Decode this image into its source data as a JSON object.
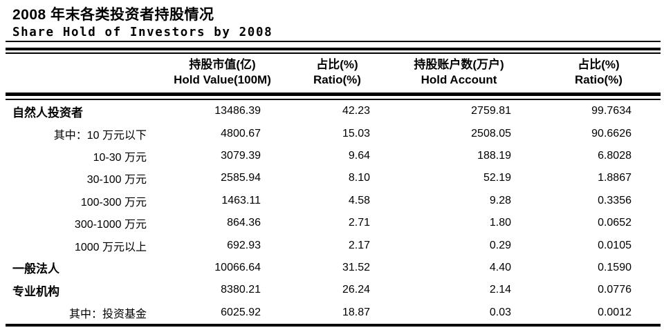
{
  "colors": {
    "text": "#000000",
    "background": "#ffffff",
    "rule": "#000000"
  },
  "title": "2008 年末各类投资者持股情况",
  "subtitle": "Share Hold of Investors by 2008",
  "table": {
    "columns": [
      {
        "zh": "",
        "en": ""
      },
      {
        "zh": "持股市值(亿)",
        "en": "Hold Value(100M)"
      },
      {
        "zh": "占比(%)",
        "en": "Ratio(%)"
      },
      {
        "zh": "持股账户数(万户)",
        "en": "Hold Account"
      },
      {
        "zh": "占比(%)",
        "en": "Ratio(%)"
      }
    ],
    "rows": [
      {
        "type": "category",
        "label": "自然人投资者",
        "values": [
          "13486.39",
          "42.23",
          "2759.81",
          "99.7634"
        ]
      },
      {
        "type": "sub",
        "label": "其中：10 万元以下",
        "values": [
          "4800.67",
          "15.03",
          "2508.05",
          "90.6626"
        ]
      },
      {
        "type": "sub",
        "label": "10-30 万元",
        "values": [
          "3079.39",
          "9.64",
          "188.19",
          "6.8028"
        ]
      },
      {
        "type": "sub",
        "label": "30-100 万元",
        "values": [
          "2585.94",
          "8.10",
          "52.19",
          "1.8867"
        ]
      },
      {
        "type": "sub",
        "label": "100-300 万元",
        "values": [
          "1463.11",
          "4.58",
          "9.28",
          "0.3356"
        ]
      },
      {
        "type": "sub",
        "label": "300-1000 万元",
        "values": [
          "864.36",
          "2.71",
          "1.80",
          "0.0652"
        ]
      },
      {
        "type": "sub",
        "label": "1000 万元以上",
        "values": [
          "692.93",
          "2.17",
          "0.29",
          "0.0105"
        ]
      },
      {
        "type": "category",
        "label": "一般法人",
        "values": [
          "10066.64",
          "31.52",
          "4.40",
          "0.1590"
        ]
      },
      {
        "type": "category",
        "label": "专业机构",
        "values": [
          "8380.21",
          "26.24",
          "2.14",
          "0.0776"
        ]
      },
      {
        "type": "sub",
        "label": "其中：投资基金",
        "values": [
          "6025.92",
          "18.87",
          "0.03",
          "0.0012"
        ]
      }
    ]
  }
}
